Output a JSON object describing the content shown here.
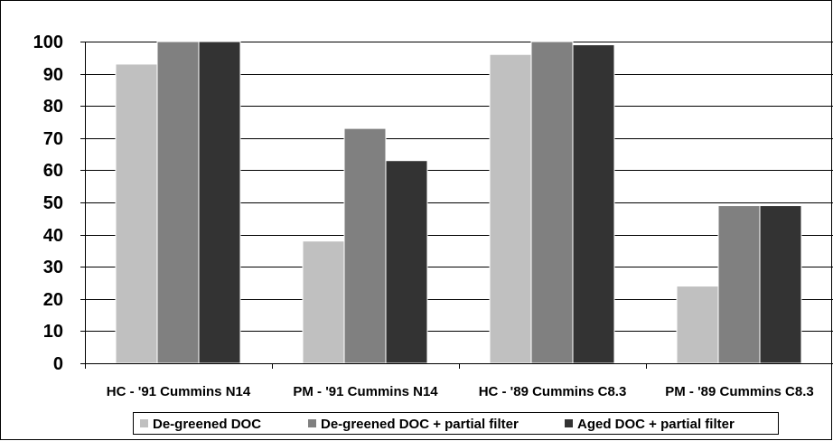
{
  "chart_data": {
    "type": "bar",
    "title": "",
    "xlabel": "",
    "ylabel": "",
    "categories": [
      "HC - '91 Cummins N14",
      "PM - '91 Cummins N14",
      "HC - '89 Cummins C8.3",
      "PM - '89 Cummins C8.3"
    ],
    "series": [
      {
        "name": "De-greened DOC",
        "values": [
          93,
          38,
          96,
          24
        ],
        "color": "#c0c0c0"
      },
      {
        "name": "De-greened DOC + partial filter",
        "values": [
          100,
          73,
          100,
          49
        ],
        "color": "#808080"
      },
      {
        "name": "Aged DOC + partial filter",
        "values": [
          100,
          63,
          99,
          49
        ],
        "color": "#333333"
      }
    ],
    "ylim": [
      0,
      100
    ],
    "yticks": [
      0,
      10,
      20,
      30,
      40,
      50,
      60,
      70,
      80,
      90,
      100
    ],
    "grid": true,
    "legend_position": "bottom"
  }
}
